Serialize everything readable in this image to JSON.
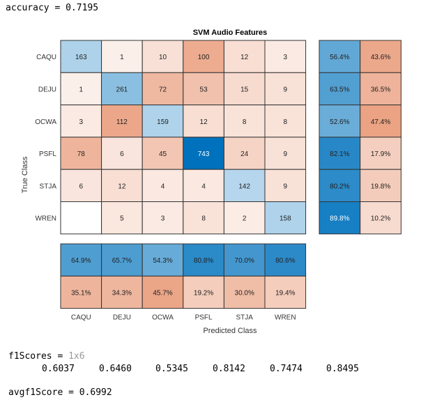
{
  "console": {
    "accuracy_line": "accuracy = 0.7195",
    "f1_label": "f1Scores = ",
    "f1_size": "1x6",
    "f1_values": [
      "0.6037",
      "0.6460",
      "0.5345",
      "0.8142",
      "0.7474",
      "0.8495"
    ],
    "avg_line": "avgf1Score = 0.6992"
  },
  "chart_data": {
    "type": "heatmap",
    "title": "SVM Audio Features",
    "xlabel": "Predicted Class",
    "ylabel": "True Class",
    "classes": [
      "CAQU",
      "DEJU",
      "OCWA",
      "PSFL",
      "STJA",
      "WREN"
    ],
    "matrix": [
      [
        163,
        1,
        10,
        100,
        12,
        3
      ],
      [
        1,
        261,
        72,
        53,
        15,
        9
      ],
      [
        3,
        112,
        159,
        12,
        8,
        8
      ],
      [
        78,
        6,
        45,
        743,
        24,
        9
      ],
      [
        6,
        12,
        4,
        4,
        142,
        9
      ],
      [
        null,
        5,
        3,
        8,
        2,
        158
      ]
    ],
    "row_summary": {
      "correct": [
        "56.4%",
        "63.5%",
        "52.6%",
        "82.1%",
        "80.2%",
        "89.8%"
      ],
      "incorrect": [
        "43.6%",
        "36.5%",
        "47.4%",
        "17.9%",
        "19.8%",
        "10.2%"
      ]
    },
    "column_summary": {
      "correct": [
        "64.9%",
        "65.7%",
        "54.3%",
        "80.8%",
        "70.0%",
        "80.6%"
      ],
      "incorrect": [
        "35.1%",
        "34.3%",
        "45.7%",
        "19.2%",
        "30.0%",
        "19.4%"
      ]
    },
    "colors": {
      "diag_max": "#0072bd",
      "diag_min": "#ffffff",
      "off_max": "#d95319",
      "off_min": "#ffffff",
      "border": "#333333",
      "pct_correct_max": "#0072bd",
      "pct_incorrect_max": "#d95319"
    }
  }
}
